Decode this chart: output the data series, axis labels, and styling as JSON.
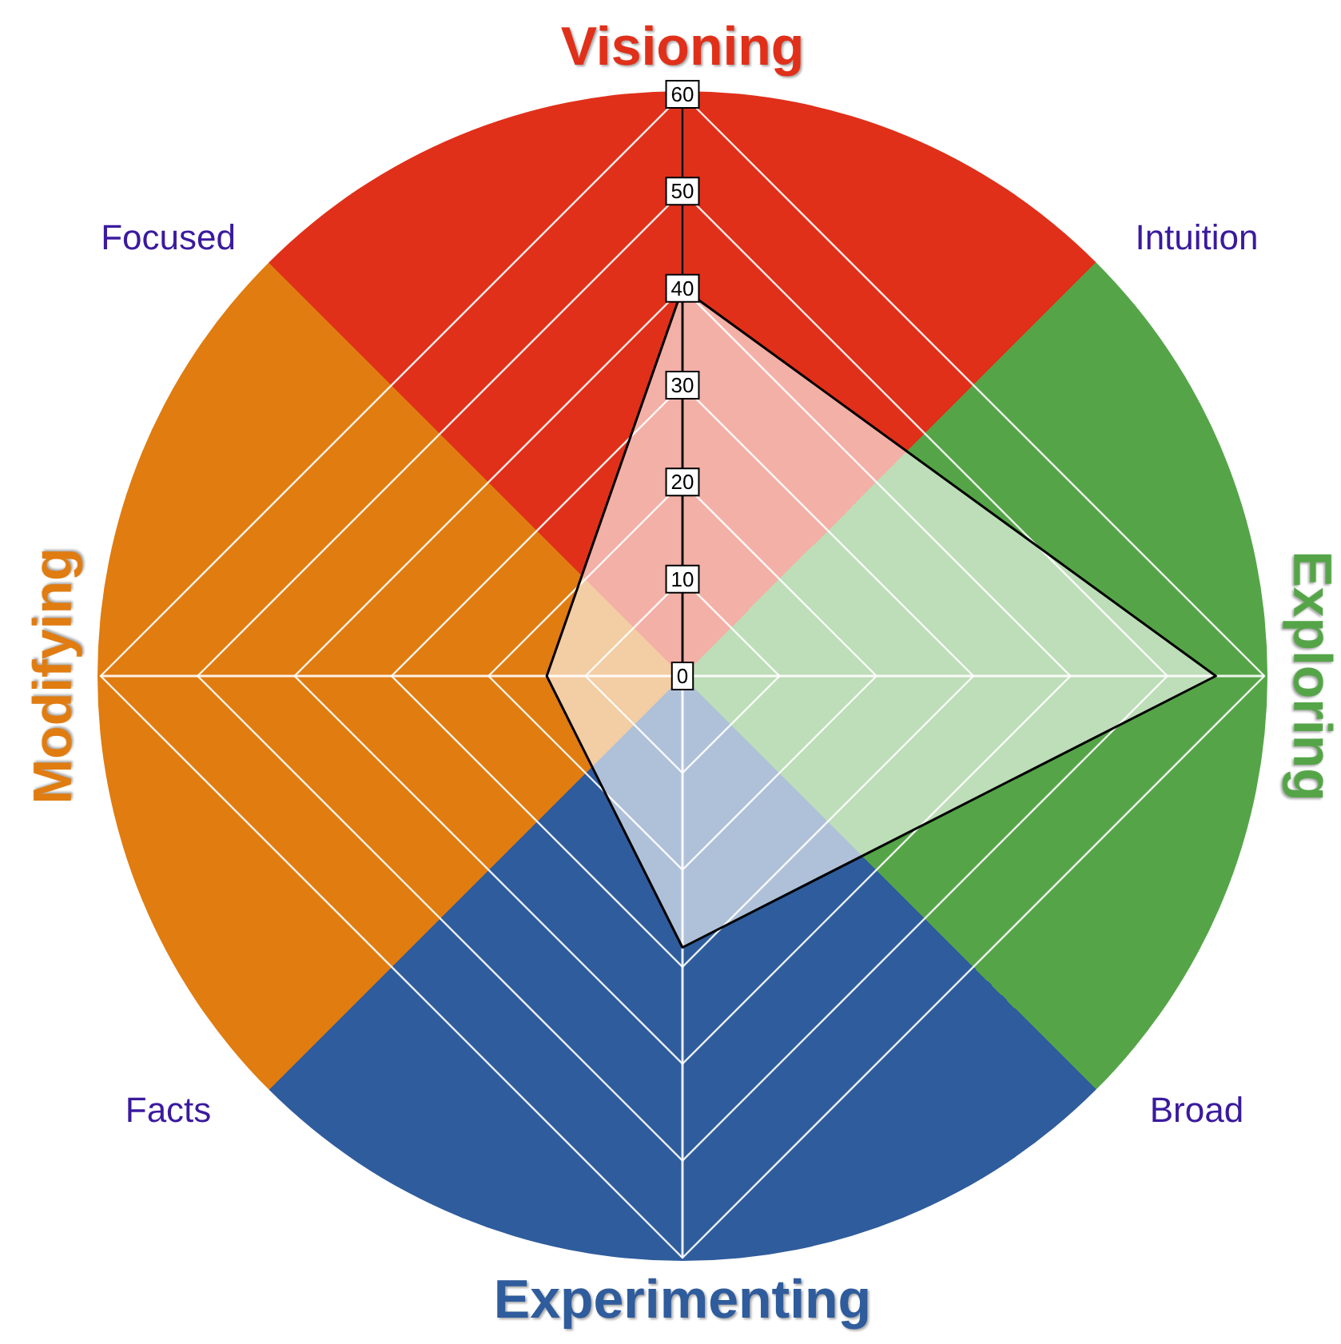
{
  "chart_data": {
    "type": "radar",
    "categories": [
      "Visioning",
      "Exploring",
      "Experimenting",
      "Modifying"
    ],
    "colors": [
      "#e0301a",
      "#55a548",
      "#2f5c9c",
      "#e07c10"
    ],
    "series": [
      {
        "color": "#000000",
        "values": [
          40,
          55,
          28,
          14
        ]
      }
    ],
    "ylim": [
      0,
      60
    ],
    "yticks": [
      0,
      10,
      20,
      30,
      40,
      50,
      60
    ],
    "grid": true,
    "marker": "none",
    "annotations": [
      "Intuition",
      "Broad",
      "Facts",
      "Focused"
    ]
  }
}
